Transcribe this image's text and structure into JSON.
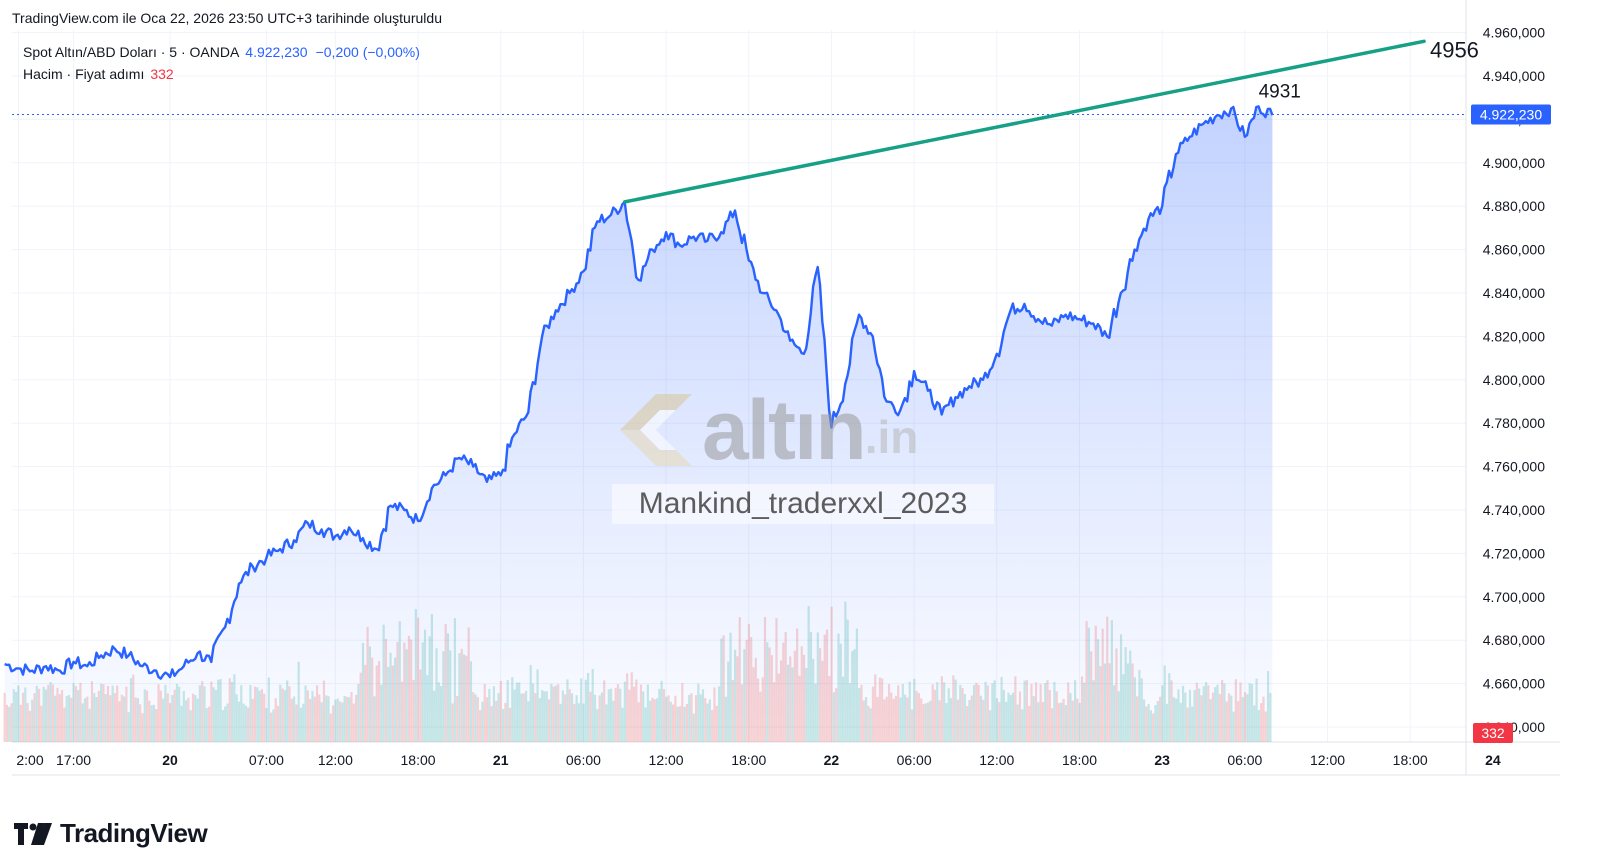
{
  "caption": "TradingView.com ile Oca 22, 2026 23:50 UTC+3 tarihinde oluşturuldu",
  "legend": {
    "symbol": "Spot Altın/ABD Doları · 5 · OANDA",
    "price": "4.922,230",
    "change": "−0,200 (−0,00%)",
    "volume_label": "Hacim · Fiyat adımı",
    "volume_value": "332"
  },
  "watermark": {
    "brand": "altın",
    "tld": ".in",
    "author": "Mankind_traderxxl_2023"
  },
  "brand": "TradingView",
  "colors": {
    "line": "#2962ff",
    "fill": "#2962ff",
    "trendline": "#16a085",
    "vol_up": "#26a69a",
    "vol_down": "#ef5350",
    "price_label": "#2962ff",
    "vol_label": "#f23645"
  },
  "chart_data": {
    "type": "area",
    "ylim": [
      4632,
      4968
    ],
    "y_ticks": [
      "4.960,000",
      "4.940,000",
      "4.920,000",
      "4.900,000",
      "4.880,000",
      "4.860,000",
      "4.840,000",
      "4.820,000",
      "4.800,000",
      "4.780,000",
      "4.760,000",
      "4.740,000",
      "4.720,000",
      "4.700,000",
      "4.680,000",
      "4.660,000",
      "4.640,000"
    ],
    "y_tick_values": [
      4960,
      4940,
      4920,
      4900,
      4880,
      4860,
      4840,
      4820,
      4800,
      4780,
      4760,
      4740,
      4720,
      4700,
      4680,
      4660,
      4640
    ],
    "x_ticks": [
      {
        "label": "2:00",
        "t": -11,
        "bold": false
      },
      {
        "label": "17:00",
        "t": -7,
        "bold": false
      },
      {
        "label": "20",
        "t": 0,
        "bold": true
      },
      {
        "label": "07:00",
        "t": 7,
        "bold": false
      },
      {
        "label": "12:00",
        "t": 12,
        "bold": false
      },
      {
        "label": "18:00",
        "t": 18,
        "bold": false
      },
      {
        "label": "21",
        "t": 24,
        "bold": true
      },
      {
        "label": "06:00",
        "t": 30,
        "bold": false
      },
      {
        "label": "12:00",
        "t": 36,
        "bold": false
      },
      {
        "label": "18:00",
        "t": 42,
        "bold": false
      },
      {
        "label": "22",
        "t": 48,
        "bold": true
      },
      {
        "label": "06:00",
        "t": 54,
        "bold": false
      },
      {
        "label": "12:00",
        "t": 60,
        "bold": false
      },
      {
        "label": "18:00",
        "t": 66,
        "bold": false
      },
      {
        "label": "23",
        "t": 72,
        "bold": true
      },
      {
        "label": "06:00",
        "t": 78,
        "bold": false
      },
      {
        "label": "12:00",
        "t": 84,
        "bold": false
      },
      {
        "label": "18:00",
        "t": 90,
        "bold": false
      },
      {
        "label": "24",
        "t": 96,
        "bold": true
      }
    ],
    "x_units": "hours from Jan 20 00:00",
    "price_series": [
      [
        -12,
        4669
      ],
      [
        -11,
        4667
      ],
      [
        -10,
        4666
      ],
      [
        -9,
        4668
      ],
      [
        -8,
        4666
      ],
      [
        -7,
        4670
      ],
      [
        -6,
        4668
      ],
      [
        -5,
        4673
      ],
      [
        -4,
        4676
      ],
      [
        -3,
        4673
      ],
      [
        -2,
        4668
      ],
      [
        -1,
        4666
      ],
      [
        0,
        4663
      ],
      [
        1,
        4668
      ],
      [
        2,
        4674
      ],
      [
        3,
        4670
      ],
      [
        4,
        4686
      ],
      [
        5,
        4706
      ],
      [
        6,
        4714
      ],
      [
        7,
        4718
      ],
      [
        8,
        4722
      ],
      [
        9,
        4726
      ],
      [
        10,
        4734
      ],
      [
        11,
        4731
      ],
      [
        12,
        4728
      ],
      [
        13,
        4732
      ],
      [
        14,
        4727
      ],
      [
        15,
        4722
      ],
      [
        16,
        4742
      ],
      [
        17,
        4740
      ],
      [
        18,
        4735
      ],
      [
        19,
        4750
      ],
      [
        20,
        4756
      ],
      [
        21,
        4764
      ],
      [
        22,
        4760
      ],
      [
        23,
        4753
      ],
      [
        24,
        4756
      ],
      [
        25,
        4775
      ],
      [
        26,
        4785
      ],
      [
        27,
        4820
      ],
      [
        28,
        4832
      ],
      [
        29,
        4840
      ],
      [
        30,
        4850
      ],
      [
        31,
        4873
      ],
      [
        32,
        4876
      ],
      [
        33,
        4882
      ],
      [
        34,
        4846
      ],
      [
        35,
        4860
      ],
      [
        36,
        4868
      ],
      [
        37,
        4862
      ],
      [
        38,
        4866
      ],
      [
        39,
        4864
      ],
      [
        40,
        4868
      ],
      [
        41,
        4878
      ],
      [
        42,
        4855
      ],
      [
        43,
        4840
      ],
      [
        44,
        4832
      ],
      [
        45,
        4818
      ],
      [
        46,
        4812
      ],
      [
        47,
        4852
      ],
      [
        48,
        4778
      ],
      [
        49,
        4798
      ],
      [
        50,
        4830
      ],
      [
        51,
        4820
      ],
      [
        52,
        4790
      ],
      [
        53,
        4786
      ],
      [
        54,
        4804
      ],
      [
        55,
        4795
      ],
      [
        56,
        4784
      ],
      [
        57,
        4792
      ],
      [
        58,
        4797
      ],
      [
        59,
        4800
      ],
      [
        60,
        4812
      ],
      [
        61,
        4832
      ],
      [
        62,
        4835
      ],
      [
        63,
        4828
      ],
      [
        64,
        4825
      ],
      [
        65,
        4830
      ],
      [
        66,
        4828
      ],
      [
        67,
        4826
      ],
      [
        68,
        4820
      ],
      [
        69,
        4840
      ],
      [
        70,
        4860
      ],
      [
        71,
        4874
      ],
      [
        72,
        4880
      ],
      [
        73,
        4904
      ],
      [
        74,
        4912
      ],
      [
        75,
        4918
      ],
      [
        76,
        4922
      ],
      [
        77,
        4925
      ],
      [
        78,
        4912
      ],
      [
        79,
        4926
      ],
      [
        80,
        4922
      ]
    ],
    "volume_max_px": 175,
    "trendline": [
      [
        33,
        4882
      ],
      [
        91,
        4956
      ]
    ],
    "annotations": [
      {
        "text": "4931",
        "t": 79,
        "y": 4931
      },
      {
        "text": "4956",
        "t": 91,
        "y": 4956
      }
    ],
    "last_price": 4922.23,
    "last_price_label": "4.922,230",
    "volume_label": "332"
  }
}
